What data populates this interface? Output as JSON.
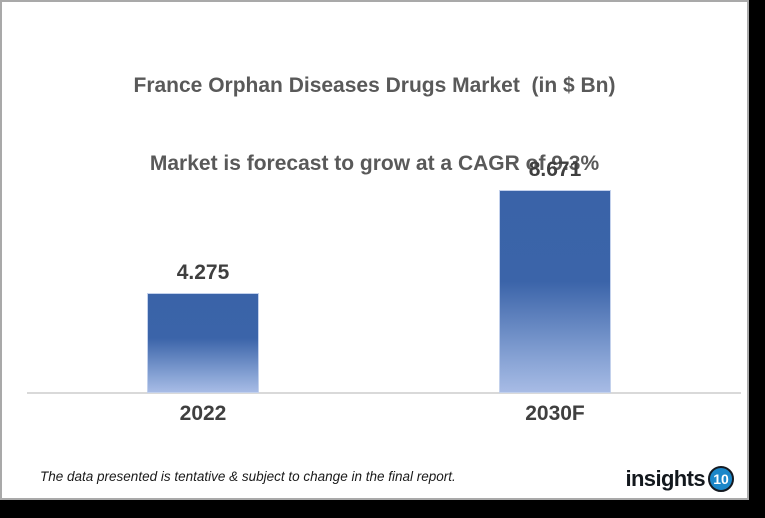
{
  "title": {
    "line1": "France Orphan Diseases Drugs Market  (in $ Bn)",
    "line2": "Market is forecast to grow at a CAGR of 9.3%"
  },
  "chart_data": {
    "type": "bar",
    "title": "France Orphan Diseases Drugs Market (in $ Bn)",
    "subtitle": "Market is forecast to grow at a CAGR of 9.3%",
    "cagr": "9.3%",
    "unit": "$ Bn",
    "categories": [
      "2022",
      "2030F"
    ],
    "values": [
      4.275,
      8.671
    ],
    "value_labels": [
      "4.275",
      "8.671"
    ],
    "xlabel": "",
    "ylabel": "",
    "ylim": [
      0,
      9.5
    ],
    "grid": false,
    "legend": "none",
    "bar_gradient_top": "#3a63a8",
    "bar_gradient_bottom": "#a7bbe5",
    "axis_line_color": "#d9d9d9"
  },
  "footer": {
    "note": "The data presented is tentative & subject to change in the final report.",
    "brand": {
      "name": "insights",
      "badge": "10",
      "badge_color": "#1b87c9"
    }
  }
}
